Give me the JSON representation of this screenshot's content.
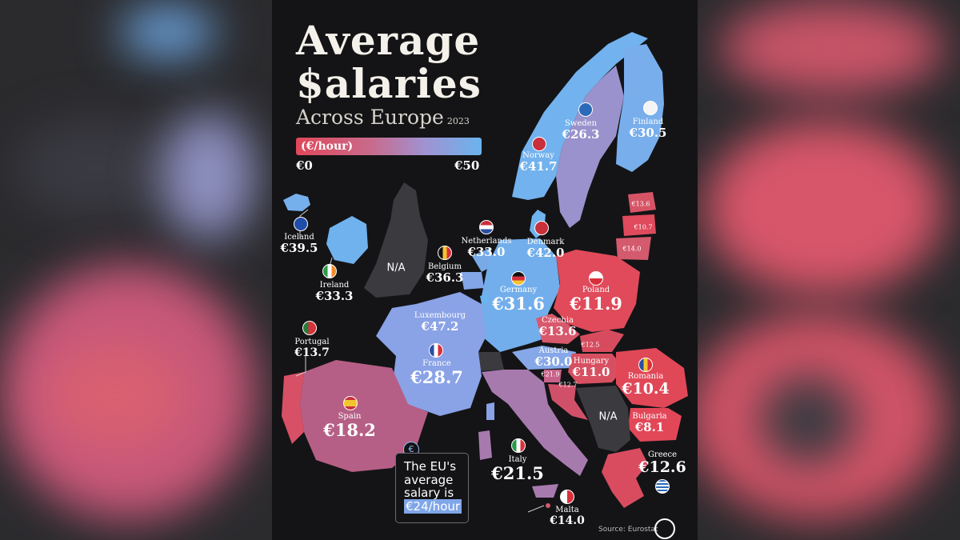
{
  "title": {
    "line1": "Average",
    "line2": "$alaries",
    "line3": "Across Europe",
    "year": "2023"
  },
  "scale": {
    "label": "(€/hour)",
    "min": "€0",
    "max": "€50",
    "max_value": 50,
    "colors": [
      "#e0485a",
      "#c96a8b",
      "#9f93d2",
      "#6ab4ee"
    ]
  },
  "countries": [
    {
      "name": "Iceland",
      "value": "€39.5"
    },
    {
      "name": "Norway",
      "value": "€41.7"
    },
    {
      "name": "Sweden",
      "value": "€26.3"
    },
    {
      "name": "Finland",
      "value": "€30.5"
    },
    {
      "name": "Denmark",
      "value": "€42.0"
    },
    {
      "name": "Netherlands",
      "value": "€33.0"
    },
    {
      "name": "Belgium",
      "value": "€36.3"
    },
    {
      "name": "Ireland",
      "value": "€33.3"
    },
    {
      "name": "Germany",
      "value": "€31.6"
    },
    {
      "name": "Poland",
      "value": "€11.9"
    },
    {
      "name": "Luxembourg",
      "value": "€47.2"
    },
    {
      "name": "Czechia",
      "value": "€13.6"
    },
    {
      "name": "Portugal",
      "value": "€13.7"
    },
    {
      "name": "France",
      "value": "€28.7"
    },
    {
      "name": "Austria",
      "value": "€30.0"
    },
    {
      "name": "Hungary",
      "value": "€11.0"
    },
    {
      "name": "Romania",
      "value": "€10.4"
    },
    {
      "name": "Bulgaria",
      "value": "€8.1"
    },
    {
      "name": "Spain",
      "value": "€18.2"
    },
    {
      "name": "Italy",
      "value": "€21.5"
    },
    {
      "name": "Greece",
      "value": "€12.6"
    },
    {
      "name": "Malta",
      "value": "€14.0"
    }
  ],
  "small_values": {
    "estonia": "€13.6",
    "latvia": "€10.7",
    "lithuania": "€14.0",
    "slovakia": "€12.5",
    "slovenia": "€21.9",
    "croatia": "€12.7"
  },
  "na_label": "N/A",
  "eu_note": {
    "line1": "The EU's",
    "line2": "average",
    "line3": "salary is",
    "highlight": "€24/hour"
  },
  "eu_icon": "€",
  "source": "Source: Eurostat"
}
